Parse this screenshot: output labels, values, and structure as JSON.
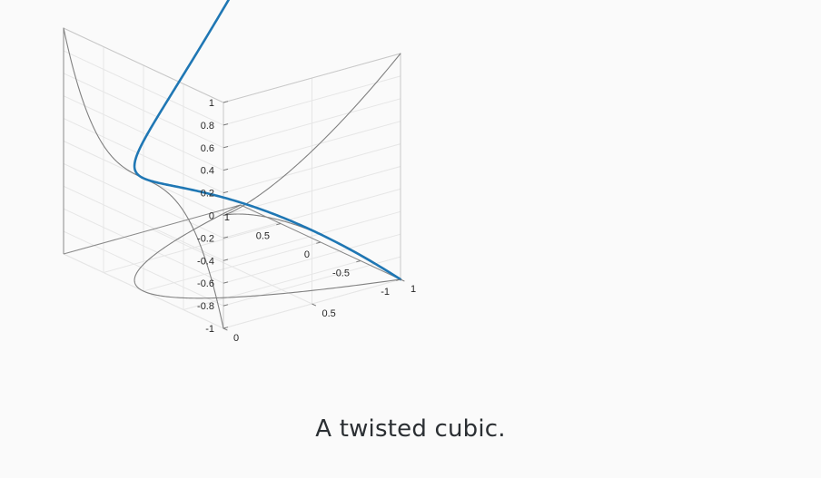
{
  "chart_data": {
    "type": "line3d",
    "title": "",
    "caption": "A twisted cubic.",
    "xlim": [
      -1,
      1
    ],
    "ylim": [
      0,
      1
    ],
    "zlim": [
      -1,
      1
    ],
    "x_ticks": [
      "-1",
      "-0.5",
      "0",
      "0.5",
      "1"
    ],
    "y_ticks": [
      "0",
      "0.5",
      "1"
    ],
    "z_ticks": [
      "-1",
      "-0.8",
      "-0.6",
      "-0.4",
      "-0.2",
      "0",
      "0.2",
      "0.4",
      "0.6",
      "0.8",
      "1"
    ],
    "grid": true,
    "series": [
      {
        "name": "curve",
        "equation": "(t, t^2, t^3)",
        "t_range": [
          -1,
          1
        ],
        "color": "#1f77b4"
      },
      {
        "name": "projection-xy",
        "equation": "(t, t^2, -1)",
        "t_range": [
          -1,
          1
        ],
        "color": "#808080"
      },
      {
        "name": "projection-xz",
        "equation": "(t, 0, t^3)",
        "t_range": [
          -1,
          1
        ],
        "color": "#808080"
      },
      {
        "name": "projection-yz",
        "equation": "(-1, t^2, t^3)",
        "t_range": [
          -1,
          1
        ],
        "color": "#808080"
      }
    ]
  }
}
